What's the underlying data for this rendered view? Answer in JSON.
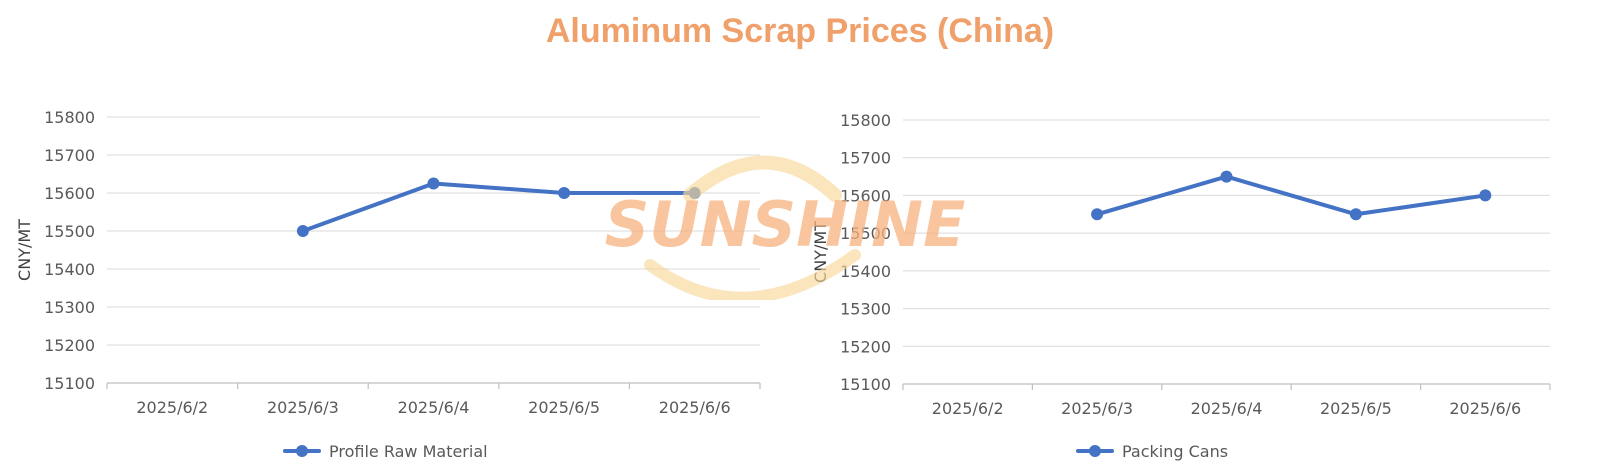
{
  "title": "Aluminum Scrap Prices (China)",
  "watermark_text": "SUNSHINE",
  "colors": {
    "title": "#f0a06a",
    "series": "#4472c4",
    "grid": "#d9d9d9",
    "axis_text": "#595959",
    "watermark_orange": "#f7b27e",
    "watermark_yellow": "#f8d79a"
  },
  "chart_data": [
    {
      "type": "line",
      "ylabel": "CNY/MT",
      "xlabel": "",
      "categories": [
        "2025/6/2",
        "2025/6/3",
        "2025/6/4",
        "2025/6/5",
        "2025/6/6"
      ],
      "yticks": [
        15100,
        15200,
        15300,
        15400,
        15500,
        15600,
        15700,
        15800
      ],
      "ylim": [
        15100,
        15800
      ],
      "grid": true,
      "legend": "bottom",
      "series": [
        {
          "name": "Profile Raw Material",
          "values": [
            null,
            15500,
            15625,
            15600,
            15600
          ]
        }
      ]
    },
    {
      "type": "line",
      "ylabel": "CNY/MT",
      "xlabel": "",
      "categories": [
        "2025/6/2",
        "2025/6/3",
        "2025/6/4",
        "2025/6/5",
        "2025/6/6"
      ],
      "yticks": [
        15100,
        15200,
        15300,
        15400,
        15500,
        15600,
        15700,
        15800
      ],
      "ylim": [
        15100,
        15800
      ],
      "grid": true,
      "legend": "bottom",
      "series": [
        {
          "name": "Packing Cans",
          "values": [
            null,
            15550,
            15650,
            15550,
            15600
          ]
        }
      ]
    }
  ]
}
